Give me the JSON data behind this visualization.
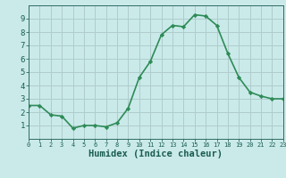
{
  "x": [
    0,
    1,
    2,
    3,
    4,
    5,
    6,
    7,
    8,
    9,
    10,
    11,
    12,
    13,
    14,
    15,
    16,
    17,
    18,
    19,
    20,
    21,
    22,
    23
  ],
  "y": [
    2.5,
    2.5,
    1.8,
    1.7,
    0.8,
    1.0,
    1.0,
    0.9,
    1.2,
    2.3,
    4.6,
    5.8,
    7.8,
    8.5,
    8.4,
    9.3,
    9.2,
    8.5,
    6.4,
    4.6,
    3.5,
    3.2,
    3.0,
    3.0
  ],
  "line_color": "#2e8b57",
  "marker": "D",
  "marker_size": 2.2,
  "bg_color": "#caeaea",
  "grid_color": "#b0cccc",
  "xlabel": "Humidex (Indice chaleur)",
  "xlim": [
    0,
    23
  ],
  "ylim": [
    0,
    10
  ],
  "yticks": [
    1,
    2,
    3,
    4,
    5,
    6,
    7,
    8,
    9
  ],
  "xticks": [
    0,
    1,
    2,
    3,
    4,
    5,
    6,
    7,
    8,
    9,
    10,
    11,
    12,
    13,
    14,
    15,
    16,
    17,
    18,
    19,
    20,
    21,
    22,
    23
  ],
  "tick_color": "#2e6b5e",
  "label_color": "#1a5c50",
  "axis_color": "#2e6b5e",
  "font_size_xlabel": 7.5,
  "font_size_ticks_y": 6.5,
  "font_size_ticks_x": 5.0,
  "line_width": 1.2,
  "marker_color": "#2e8b57"
}
